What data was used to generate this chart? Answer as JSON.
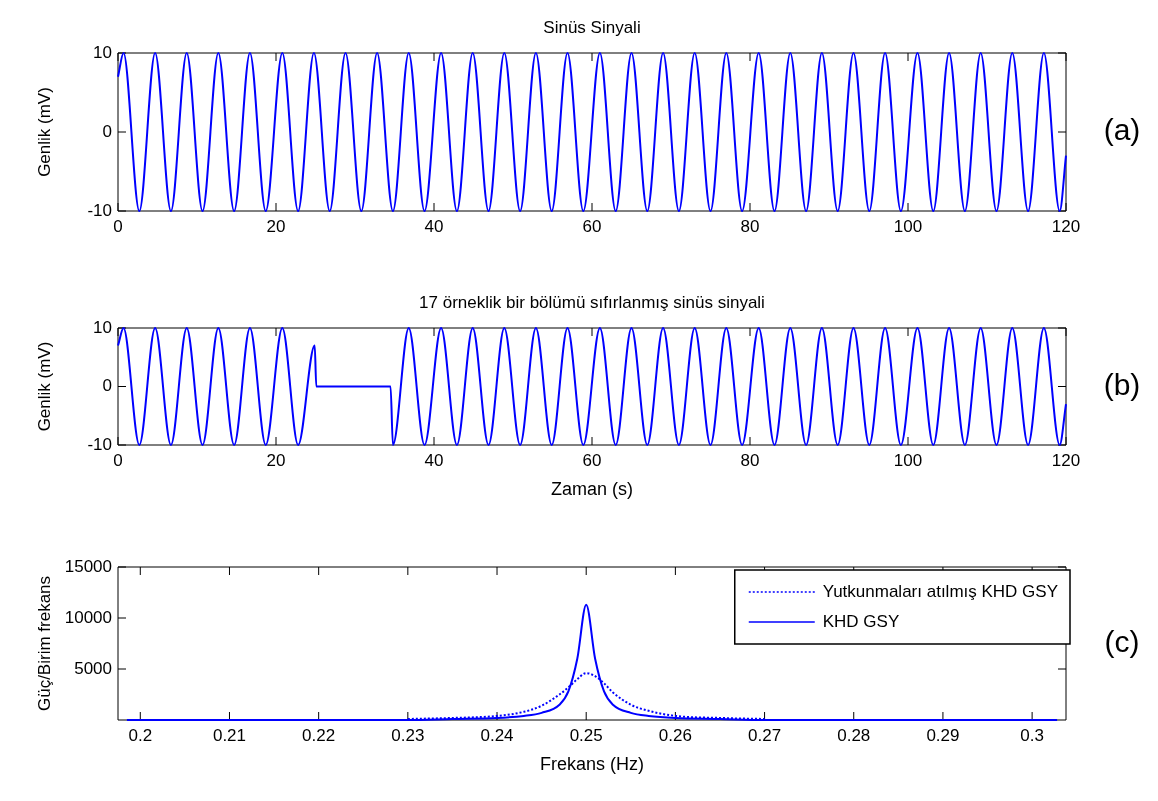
{
  "chart_data": [
    {
      "type": "line",
      "title": "Sinüs Sinyali",
      "ylabel": "Genlik (mV)",
      "annotations": [
        "(a)"
      ],
      "color": "#0000ff",
      "xlim": [
        0,
        120
      ],
      "ylim": [
        -10,
        10
      ],
      "xticks": [
        0,
        20,
        40,
        60,
        80,
        100,
        120
      ],
      "yticks": [
        -10,
        0,
        10
      ],
      "grid": false,
      "x": [
        0,
        0.7,
        2.7,
        4.7,
        6.7,
        8.7,
        10.7,
        12.7,
        14.7,
        16.7,
        18.7,
        20.8,
        22.8,
        24.8,
        26.8,
        28.8,
        30.8,
        32.8,
        34.8,
        36.8,
        38.8,
        40.9,
        42.9,
        44.9,
        46.9,
        48.9,
        50.9,
        52.9,
        54.9,
        56.9,
        58.9,
        61.0,
        63.0,
        65.0,
        67.0,
        69.0,
        71.0,
        73.0,
        75.0,
        77.0,
        79.0,
        81.1,
        83.1,
        85.1,
        87.1,
        89.1,
        91.1,
        93.1,
        95.1,
        97.1,
        99.1,
        101.2,
        103.2,
        105.2,
        107.2,
        109.2,
        111.2,
        113.2,
        115.2,
        117.2,
        119.2,
        120
      ],
      "values": [
        7,
        10,
        -10,
        10,
        -10,
        10,
        -10,
        10,
        -10,
        10,
        -10,
        10,
        -10,
        10,
        -10,
        10,
        -10,
        10,
        -10,
        10,
        -10,
        10,
        -10,
        10,
        -10,
        10,
        -10,
        10,
        -10,
        10,
        -10,
        10,
        -10,
        10,
        -10,
        10,
        -10,
        10,
        -10,
        10,
        -10,
        10,
        -10,
        10,
        -10,
        10,
        -10,
        10,
        -10,
        10,
        -10,
        10,
        -10,
        10,
        -10,
        10,
        -10,
        10,
        -10,
        10,
        -10,
        -3
      ]
    },
    {
      "type": "line",
      "title": "17 örneklik bir bölümü sıfırlanmış sinüs sinyali",
      "ylabel": "Genlik (mV)",
      "xlabel": "Zaman (s)",
      "annotations": [
        "(b)"
      ],
      "color": "#0000ff",
      "xlim": [
        0,
        120
      ],
      "ylim": [
        -10,
        10
      ],
      "xticks": [
        0,
        20,
        40,
        60,
        80,
        100,
        120
      ],
      "yticks": [
        -10,
        0,
        10
      ],
      "grid": false,
      "x": [
        0,
        0.7,
        2.7,
        4.7,
        6.7,
        8.7,
        10.7,
        12.7,
        14.7,
        16.7,
        18.7,
        20.8,
        22.8,
        24.9,
        25.1,
        34.5,
        34.8,
        36.8,
        38.8,
        40.9,
        42.9,
        44.9,
        46.9,
        48.9,
        50.9,
        52.9,
        54.9,
        56.9,
        58.9,
        61.0,
        63.0,
        65.0,
        67.0,
        69.0,
        71.0,
        73.0,
        75.0,
        77.0,
        79.0,
        81.1,
        83.1,
        85.1,
        87.1,
        89.1,
        91.1,
        93.1,
        95.1,
        97.1,
        99.1,
        101.2,
        103.2,
        105.2,
        107.2,
        109.2,
        111.2,
        113.2,
        115.2,
        117.2,
        119.2,
        120
      ],
      "values": [
        7,
        10,
        -10,
        10,
        -10,
        10,
        -10,
        10,
        -10,
        10,
        -10,
        10,
        -10,
        7,
        0,
        0,
        -10,
        10,
        -10,
        10,
        -10,
        10,
        -10,
        10,
        -10,
        10,
        -10,
        10,
        -10,
        10,
        -10,
        10,
        -10,
        10,
        -10,
        10,
        -10,
        10,
        -10,
        10,
        -10,
        10,
        -10,
        10,
        -10,
        10,
        -10,
        10,
        -10,
        10,
        -10,
        10,
        -10,
        10,
        -10,
        10,
        -10,
        10,
        -10,
        -3
      ]
    },
    {
      "type": "line",
      "ylabel": "Güç/Birim frekans",
      "xlabel": "Frekans (Hz)",
      "annotations": [
        "(c)"
      ],
      "xlim": [
        0.1975,
        0.3038
      ],
      "ylim": [
        0,
        15000
      ],
      "xticks": [
        0.2,
        0.21,
        0.22,
        0.23,
        0.24,
        0.25,
        0.26,
        0.27,
        0.28,
        0.29,
        0.3
      ],
      "yticks": [
        5000,
        10000,
        15000
      ],
      "grid": false,
      "legend": "top right",
      "series": [
        {
          "name": "Yutkunmaları atılmış KHD GSY",
          "color": "#0000ff",
          "line_style": "dotted",
          "x": [
            0.23,
            0.235,
            0.24,
            0.243,
            0.245,
            0.247,
            0.248,
            0.249,
            0.25,
            0.251,
            0.252,
            0.253,
            0.255,
            0.257,
            0.26,
            0.265,
            0.27
          ],
          "values": [
            100,
            200,
            400,
            800,
            1400,
            2500,
            3200,
            4000,
            4600,
            4300,
            3600,
            2700,
            1500,
            900,
            400,
            200,
            100
          ]
        },
        {
          "name": "KHD GSY",
          "color": "#0000ff",
          "line_style": "solid",
          "x": [
            0.1985,
            0.23,
            0.235,
            0.24,
            0.243,
            0.245,
            0.247,
            0.248,
            0.249,
            0.25,
            0.251,
            0.252,
            0.253,
            0.255,
            0.257,
            0.26,
            0.265,
            0.27,
            0.3028
          ],
          "values": [
            0,
            0,
            100,
            200,
            400,
            700,
            1500,
            2800,
            6000,
            11300,
            6000,
            2800,
            1500,
            700,
            400,
            200,
            100,
            0,
            0
          ]
        }
      ]
    }
  ]
}
